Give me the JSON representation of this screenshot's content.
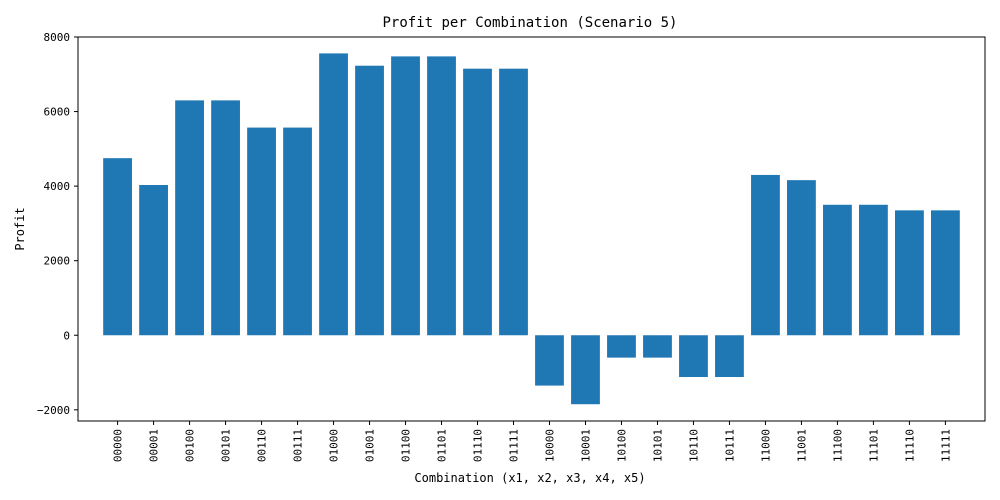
{
  "chart_data": {
    "type": "bar",
    "title": "Profit per Combination (Scenario 5)",
    "xlabel": "Combination (x1, x2, x3, x4, x5)",
    "ylabel": "Profit",
    "categories": [
      "00000",
      "00001",
      "00100",
      "00101",
      "00110",
      "00111",
      "01000",
      "01001",
      "01100",
      "01101",
      "01110",
      "01111",
      "10000",
      "10001",
      "10100",
      "10101",
      "10110",
      "10111",
      "11000",
      "11001",
      "11100",
      "11101",
      "11110",
      "11111"
    ],
    "values": [
      4750,
      4030,
      6300,
      6300,
      5570,
      5570,
      7560,
      7230,
      7480,
      7480,
      7150,
      7150,
      -1350,
      -1850,
      -600,
      -600,
      -1120,
      -1120,
      4300,
      4160,
      3500,
      3500,
      3350,
      3350
    ],
    "ylim": [
      -2300,
      8000
    ],
    "yticks": [
      -2000,
      0,
      2000,
      4000,
      6000,
      8000
    ],
    "bar_color": "#1f77b4",
    "grid": false
  }
}
